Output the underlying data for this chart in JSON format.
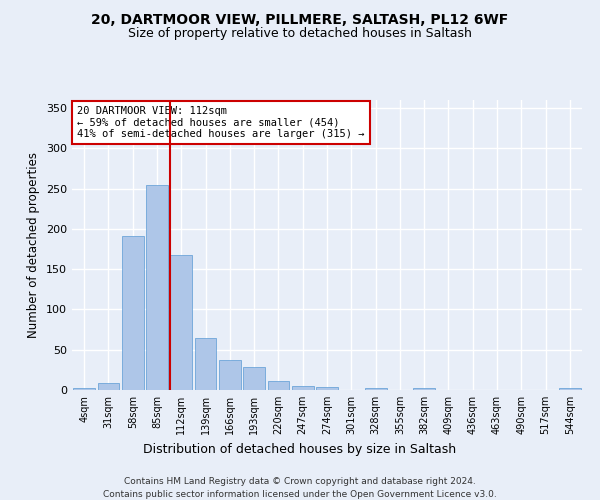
{
  "title1": "20, DARTMOOR VIEW, PILLMERE, SALTASH, PL12 6WF",
  "title2": "Size of property relative to detached houses in Saltash",
  "xlabel": "Distribution of detached houses by size in Saltash",
  "ylabel": "Number of detached properties",
  "bin_labels": [
    "4sqm",
    "31sqm",
    "58sqm",
    "85sqm",
    "112sqm",
    "139sqm",
    "166sqm",
    "193sqm",
    "220sqm",
    "247sqm",
    "274sqm",
    "301sqm",
    "328sqm",
    "355sqm",
    "382sqm",
    "409sqm",
    "436sqm",
    "463sqm",
    "490sqm",
    "517sqm",
    "544sqm"
  ],
  "bar_heights": [
    2,
    9,
    191,
    254,
    167,
    65,
    37,
    29,
    11,
    5,
    4,
    0,
    3,
    0,
    3,
    0,
    0,
    0,
    0,
    0,
    2
  ],
  "bar_color": "#aec6e8",
  "bar_edgecolor": "#5b9bd5",
  "vline_bin_index": 4,
  "annotation_line1": "20 DARTMOOR VIEW: 112sqm",
  "annotation_line2": "← 59% of detached houses are smaller (454)",
  "annotation_line3": "41% of semi-detached houses are larger (315) →",
  "vline_color": "#cc0000",
  "annotation_box_facecolor": "#ffffff",
  "annotation_box_edgecolor": "#cc0000",
  "ylim": [
    0,
    360
  ],
  "yticks": [
    0,
    50,
    100,
    150,
    200,
    250,
    300,
    350
  ],
  "footnote1": "Contains HM Land Registry data © Crown copyright and database right 2024.",
  "footnote2": "Contains public sector information licensed under the Open Government Licence v3.0.",
  "bg_color": "#e8eef8",
  "grid_color": "#ffffff"
}
